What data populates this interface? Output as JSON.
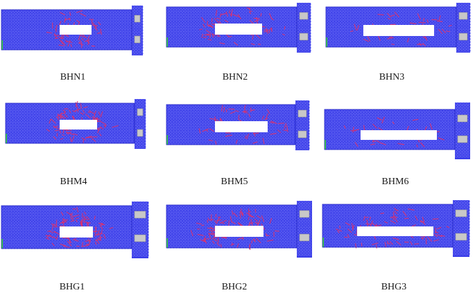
{
  "panels": [
    {
      "label": "BHN1",
      "colors": {
        "mesh": "#3b3ee8",
        "crack": "#e0306a",
        "support": "#b8b8b8",
        "edge": "#3ad23a"
      }
    },
    {
      "label": "BHN2"
    },
    {
      "label": "BHN3"
    },
    {
      "label": "BHM4"
    },
    {
      "label": "BHM5"
    },
    {
      "label": "BHM6"
    },
    {
      "label": "BHG1"
    },
    {
      "label": "BHG2"
    },
    {
      "label": "BHG3"
    }
  ],
  "colors": {
    "mesh": "#3b3ee8",
    "mesh_dark": "#2124c4",
    "node": "#6b6ef5",
    "crack": "#e0306a",
    "opening": "#ffffff",
    "support": "#c8c8c8",
    "edge": "#3ad23a"
  }
}
